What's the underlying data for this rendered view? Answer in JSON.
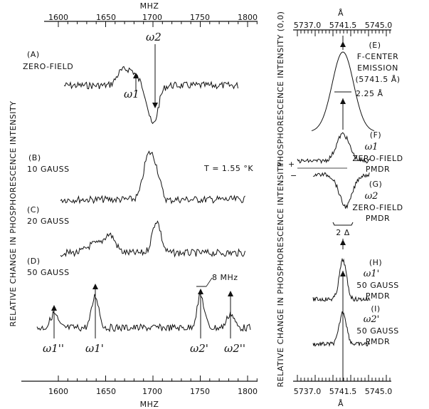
{
  "left_panel": {
    "top_axis_label": "MHZ",
    "bottom_axis_label": "MHZ",
    "top_ticks": [
      "1600",
      "1650",
      "1700",
      "1750",
      "1800"
    ],
    "bottom_ticks": [
      "1600",
      "1650",
      "1700",
      "1750",
      "1800"
    ],
    "y_axis_label": "RELATIVE CHANGE IN PHOSPHORESCENCE INTENSITY",
    "temperature": "T = 1.55 °K",
    "traces": [
      {
        "id": "A",
        "label": "(A)",
        "sublabel": "ZERO-FIELD"
      },
      {
        "id": "B",
        "label": "(B)",
        "sublabel": "10 GAUSS"
      },
      {
        "id": "C",
        "label": "(C)",
        "sublabel": "20 GAUSS"
      },
      {
        "id": "D",
        "label": "(D)",
        "sublabel": "50 GAUSS"
      }
    ],
    "annotations": {
      "w1": "ω1",
      "w2": "ω2",
      "w1pp": "ω1''",
      "w1p": "ω1'",
      "w2p": "ω2'",
      "w2pp": "ω2''",
      "width_8mhz": "8 MHz"
    }
  },
  "right_panel": {
    "top_axis_label": "Å",
    "bottom_axis_label": "Å",
    "top_ticks": [
      "5737.0",
      "5741.5",
      "5745.0"
    ],
    "bottom_ticks": [
      "5737.0",
      "5741.5",
      "5745.0"
    ],
    "y_axis_label_top": "PHOSPHORESCENCE INTENSITY (0,0)",
    "y_axis_label_bottom": "RELATIVE CHANGE IN PHOSPHORESCENCE INTENSITY",
    "panels": {
      "E": {
        "label": "(E)",
        "lines": [
          "F-CENTER",
          "EMISSION",
          "(5741.5 Å)"
        ],
        "width_label": "2.25 Å"
      },
      "F": {
        "label": "(F)",
        "greek": "ω1",
        "lines": [
          "ZERO-FIELD",
          "PMDR"
        ]
      },
      "G": {
        "label": "(G)",
        "greek": "ω2",
        "lines": [
          "ZERO-FIELD",
          "PMDR"
        ],
        "bracket_label": "2 Δ"
      },
      "H": {
        "label": "(H)",
        "greek": "ω1'",
        "lines": [
          "50 GAUSS",
          "PMDR"
        ]
      },
      "I": {
        "label": "(I)",
        "greek": "ω2'",
        "lines": [
          "50 GAUSS",
          "PMDR"
        ]
      }
    },
    "plus": "+",
    "minus": "−"
  }
}
